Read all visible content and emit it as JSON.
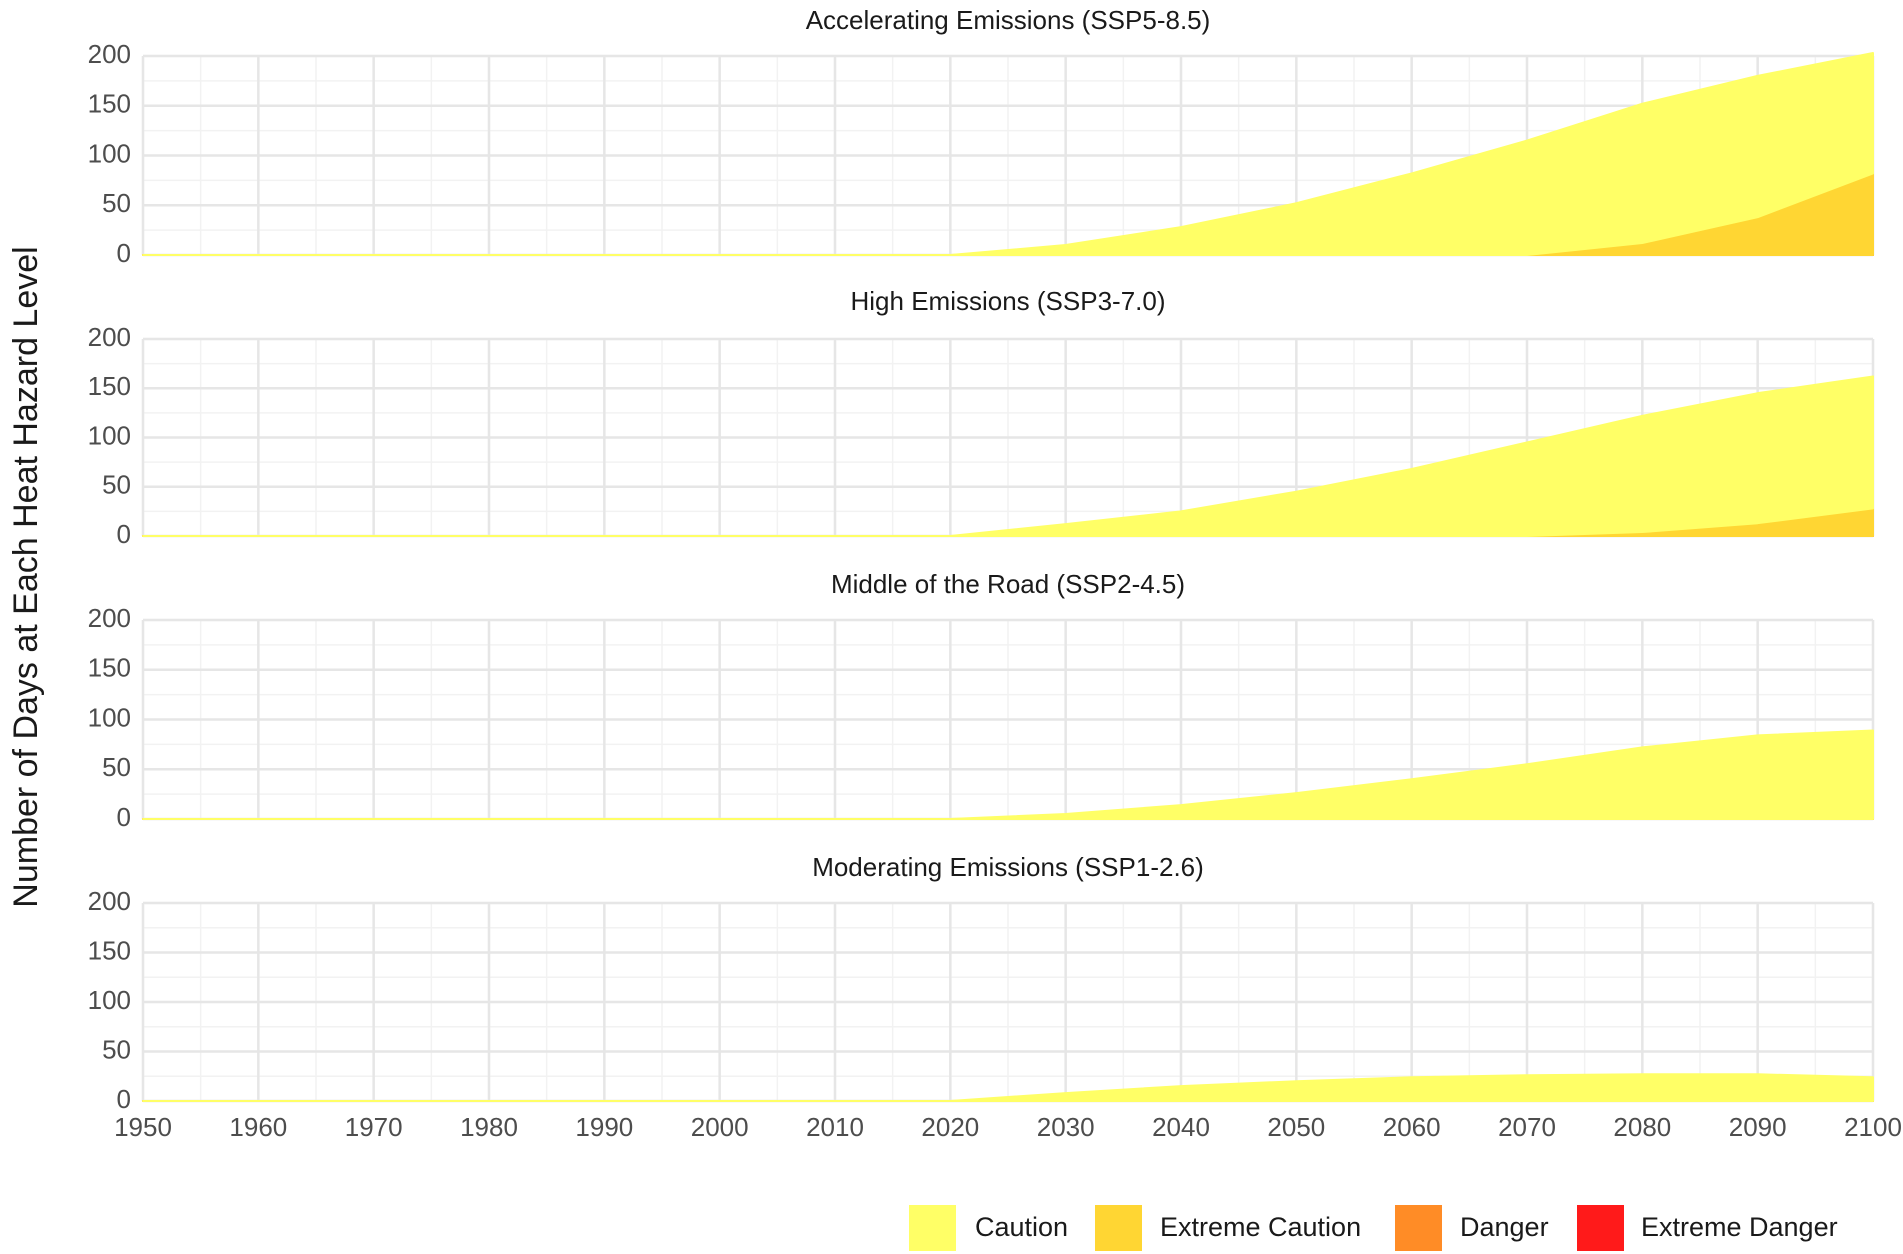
{
  "ylabel": "Number of Days at Each Heat Hazard Level",
  "chart_data": [
    {
      "type": "area",
      "title": "Accelerating Emissions (SSP5-8.5)",
      "x": [
        1950,
        1960,
        1970,
        1980,
        1990,
        2000,
        2010,
        2020,
        2030,
        2040,
        2050,
        2060,
        2070,
        2080,
        2090,
        2100
      ],
      "series": [
        {
          "name": "Caution",
          "color": "#ffff66",
          "values": [
            0,
            0,
            0,
            0,
            0,
            0,
            0,
            0,
            10,
            28,
            52,
            82,
            115,
            140,
            142,
            121
          ]
        },
        {
          "name": "Extreme Caution",
          "color": "#ffd633",
          "values": [
            0,
            0,
            0,
            0,
            0,
            0,
            0,
            0,
            0,
            0,
            0,
            0,
            0,
            12,
            38,
            82
          ]
        },
        {
          "name": "Danger",
          "color": "#ff8c26",
          "values": [
            0,
            0,
            0,
            0,
            0,
            0,
            0,
            0,
            0,
            0,
            0,
            0,
            0,
            0,
            0,
            0
          ]
        },
        {
          "name": "Extreme Danger",
          "color": "#ff1a1a",
          "values": [
            0,
            0,
            0,
            0,
            0,
            0,
            0,
            0,
            0,
            0,
            0,
            0,
            0,
            0,
            0,
            0
          ]
        }
      ],
      "xlim": [
        1950,
        2100
      ],
      "xticks": [
        1950,
        1960,
        1970,
        1980,
        1990,
        2000,
        2010,
        2020,
        2030,
        2040,
        2050,
        2060,
        2070,
        2080,
        2090,
        2100
      ],
      "ylim": [
        0,
        200
      ],
      "yticks": [
        0,
        50,
        100,
        150,
        200
      ],
      "grid": true
    },
    {
      "type": "area",
      "title": "High Emissions (SSP3-7.0)",
      "x": [
        1950,
        1960,
        1970,
        1980,
        1990,
        2000,
        2010,
        2020,
        2030,
        2040,
        2050,
        2060,
        2070,
        2080,
        2090,
        2100
      ],
      "series": [
        {
          "name": "Caution",
          "color": "#ffff66",
          "values": [
            0,
            0,
            0,
            0,
            0,
            0,
            0,
            0,
            12,
            25,
            45,
            68,
            95,
            118,
            132,
            134
          ]
        },
        {
          "name": "Extreme Caution",
          "color": "#ffd633",
          "values": [
            0,
            0,
            0,
            0,
            0,
            0,
            0,
            0,
            0,
            0,
            0,
            0,
            0,
            4,
            13,
            28
          ]
        },
        {
          "name": "Danger",
          "color": "#ff8c26",
          "values": [
            0,
            0,
            0,
            0,
            0,
            0,
            0,
            0,
            0,
            0,
            0,
            0,
            0,
            0,
            0,
            0
          ]
        },
        {
          "name": "Extreme Danger",
          "color": "#ff1a1a",
          "values": [
            0,
            0,
            0,
            0,
            0,
            0,
            0,
            0,
            0,
            0,
            0,
            0,
            0,
            0,
            0,
            0
          ]
        }
      ],
      "xlim": [
        1950,
        2100
      ],
      "xticks": [
        1950,
        1960,
        1970,
        1980,
        1990,
        2000,
        2010,
        2020,
        2030,
        2040,
        2050,
        2060,
        2070,
        2080,
        2090,
        2100
      ],
      "ylim": [
        0,
        200
      ],
      "yticks": [
        0,
        50,
        100,
        150,
        200
      ],
      "grid": true
    },
    {
      "type": "area",
      "title": "Middle of the Road (SSP2-4.5)",
      "x": [
        1950,
        1960,
        1970,
        1980,
        1990,
        2000,
        2010,
        2020,
        2030,
        2040,
        2050,
        2060,
        2070,
        2080,
        2090,
        2100
      ],
      "series": [
        {
          "name": "Caution",
          "color": "#ffff66",
          "values": [
            0,
            0,
            0,
            0,
            0,
            0,
            0,
            0,
            5,
            14,
            26,
            40,
            55,
            72,
            84,
            89
          ]
        },
        {
          "name": "Extreme Caution",
          "color": "#ffd633",
          "values": [
            0,
            0,
            0,
            0,
            0,
            0,
            0,
            0,
            0,
            0,
            0,
            0,
            0,
            0,
            0,
            0
          ]
        },
        {
          "name": "Danger",
          "color": "#ff8c26",
          "values": [
            0,
            0,
            0,
            0,
            0,
            0,
            0,
            0,
            0,
            0,
            0,
            0,
            0,
            0,
            0,
            0
          ]
        },
        {
          "name": "Extreme Danger",
          "color": "#ff1a1a",
          "values": [
            0,
            0,
            0,
            0,
            0,
            0,
            0,
            0,
            0,
            0,
            0,
            0,
            0,
            0,
            0,
            0
          ]
        }
      ],
      "xlim": [
        1950,
        2100
      ],
      "xticks": [
        1950,
        1960,
        1970,
        1980,
        1990,
        2000,
        2010,
        2020,
        2030,
        2040,
        2050,
        2060,
        2070,
        2080,
        2090,
        2100
      ],
      "ylim": [
        0,
        200
      ],
      "yticks": [
        0,
        50,
        100,
        150,
        200
      ],
      "grid": true
    },
    {
      "type": "area",
      "title": "Moderating Emissions (SSP1-2.6)",
      "x": [
        1950,
        1960,
        1970,
        1980,
        1990,
        2000,
        2010,
        2020,
        2030,
        2040,
        2050,
        2060,
        2070,
        2080,
        2090,
        2100
      ],
      "series": [
        {
          "name": "Caution",
          "color": "#ffff66",
          "values": [
            0,
            0,
            0,
            0,
            0,
            0,
            0,
            0,
            8,
            15,
            20,
            24,
            26,
            27,
            27,
            24
          ]
        },
        {
          "name": "Extreme Caution",
          "color": "#ffd633",
          "values": [
            0,
            0,
            0,
            0,
            0,
            0,
            0,
            0,
            0,
            0,
            0,
            0,
            0,
            0,
            0,
            0
          ]
        },
        {
          "name": "Danger",
          "color": "#ff8c26",
          "values": [
            0,
            0,
            0,
            0,
            0,
            0,
            0,
            0,
            0,
            0,
            0,
            0,
            0,
            0,
            0,
            0
          ]
        },
        {
          "name": "Extreme Danger",
          "color": "#ff1a1a",
          "values": [
            0,
            0,
            0,
            0,
            0,
            0,
            0,
            0,
            0,
            0,
            0,
            0,
            0,
            0,
            0,
            0
          ]
        }
      ],
      "xlim": [
        1950,
        2100
      ],
      "xticks": [
        1950,
        1960,
        1970,
        1980,
        1990,
        2000,
        2010,
        2020,
        2030,
        2040,
        2050,
        2060,
        2070,
        2080,
        2090,
        2100
      ],
      "ylim": [
        0,
        200
      ],
      "yticks": [
        0,
        50,
        100,
        150,
        200
      ],
      "grid": true
    }
  ]
}
